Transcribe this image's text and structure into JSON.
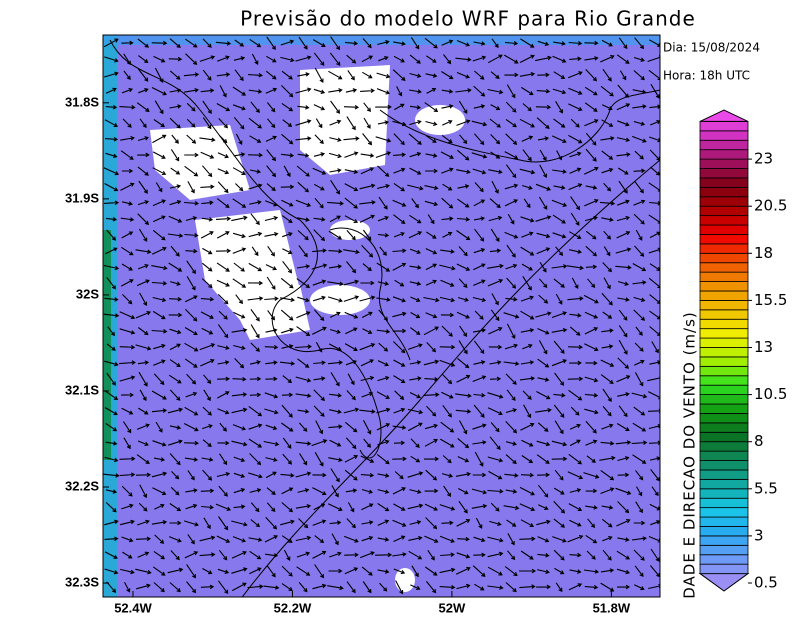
{
  "header": {
    "title": "Previsão do modelo WRF para Rio Grande",
    "date": "Dia: 15/08/2024",
    "hour": "Hora: 18h UTC"
  },
  "map": {
    "lonlim": [
      -52.4376,
      -51.739
    ],
    "latlim": [
      -31.7294,
      -32.3145
    ],
    "xticks": [
      {
        "value": -52.4,
        "label": "52.4W"
      },
      {
        "value": -52.2,
        "label": "52.2W"
      },
      {
        "value": -52.0,
        "label": "52W"
      },
      {
        "value": -51.8,
        "label": "51.8W"
      }
    ],
    "yticks": [
      {
        "value": -31.8,
        "label": "31.8S"
      },
      {
        "value": -31.9,
        "label": "31.9S"
      },
      {
        "value": -32.0,
        "label": "32S"
      },
      {
        "value": -32.1,
        "label": "32.1S"
      },
      {
        "value": -32.2,
        "label": "32.2S"
      },
      {
        "value": -32.3,
        "label": "32.3S"
      }
    ]
  },
  "colorbar": {
    "label": "DADE E DIRECAO DO VENTO (m/s)",
    "lim": [
      0.5,
      25.5
    ],
    "step": 0.5,
    "colors": [
      "#a58cf5",
      "#6a9cf5",
      "#2aa8f0",
      "#18c8e8",
      "#10a8a0",
      "#108858",
      "#0a7020",
      "#14a014",
      "#30e020",
      "#a8f000",
      "#f0f000",
      "#f0c000",
      "#f09000",
      "#f05000",
      "#f00000",
      "#b00000",
      "#800010",
      "#a01060",
      "#d030c0",
      "#f050f0"
    ],
    "ticks": [
      0.5,
      3,
      5.5,
      8,
      10.5,
      13,
      15.5,
      18,
      20.5,
      23
    ]
  }
}
